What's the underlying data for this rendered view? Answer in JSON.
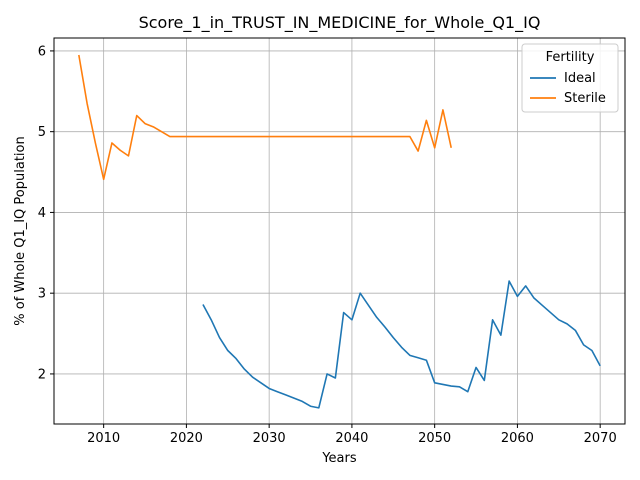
{
  "chart_data": {
    "type": "line",
    "title": "Score_1_in_TRUST_IN_MEDICINE_for_Whole_Q1_IQ",
    "xlabel": "Years",
    "ylabel": "% of Whole Q1_IQ Population",
    "xlim": [
      2004,
      2073
    ],
    "ylim": [
      1.38,
      6.16
    ],
    "xticks": [
      2010,
      2020,
      2030,
      2040,
      2050,
      2060,
      2070
    ],
    "yticks": [
      2,
      3,
      4,
      5,
      6
    ],
    "grid": true,
    "legend": {
      "title": "Fertility",
      "placement": "top-right"
    },
    "series": [
      {
        "name": "Ideal",
        "color": "#1f77b4",
        "x": [
          2022,
          2023,
          2024,
          2025,
          2026,
          2027,
          2028,
          2029,
          2030,
          2031,
          2032,
          2033,
          2034,
          2035,
          2036,
          2037,
          2038,
          2039,
          2040,
          2041,
          2042,
          2043,
          2044,
          2045,
          2046,
          2047,
          2048,
          2049,
          2050,
          2051,
          2052,
          2053,
          2054,
          2055,
          2056,
          2057,
          2058,
          2059,
          2060,
          2061,
          2062,
          2063,
          2064,
          2065,
          2066,
          2067,
          2068,
          2069,
          2070
        ],
        "y": [
          2.86,
          2.67,
          2.45,
          2.29,
          2.19,
          2.06,
          1.96,
          1.89,
          1.82,
          1.78,
          1.74,
          1.7,
          1.66,
          1.6,
          1.58,
          2.0,
          1.95,
          2.76,
          2.67,
          3.0,
          2.85,
          2.7,
          2.58,
          2.45,
          2.33,
          2.23,
          2.2,
          2.17,
          1.89,
          1.87,
          1.85,
          1.84,
          1.78,
          2.08,
          1.92,
          2.67,
          2.48,
          3.15,
          2.96,
          3.09,
          2.94,
          2.85,
          2.76,
          2.67,
          2.62,
          2.54,
          2.36,
          2.29,
          2.1
        ]
      },
      {
        "name": "Sterile",
        "color": "#ff7f0e",
        "x": [
          2007,
          2008,
          2009,
          2010,
          2011,
          2012,
          2013,
          2014,
          2015,
          2016,
          2017,
          2018,
          2019,
          2020,
          2025,
          2030,
          2035,
          2040,
          2045,
          2046,
          2047,
          2048,
          2049,
          2050,
          2051,
          2052
        ],
        "y": [
          5.95,
          5.35,
          4.86,
          4.41,
          4.86,
          4.77,
          4.7,
          5.2,
          5.1,
          5.06,
          5.0,
          4.94,
          4.94,
          4.94,
          4.94,
          4.94,
          4.94,
          4.94,
          4.94,
          4.94,
          4.94,
          4.76,
          5.14,
          4.8,
          5.27,
          4.8
        ]
      }
    ]
  }
}
